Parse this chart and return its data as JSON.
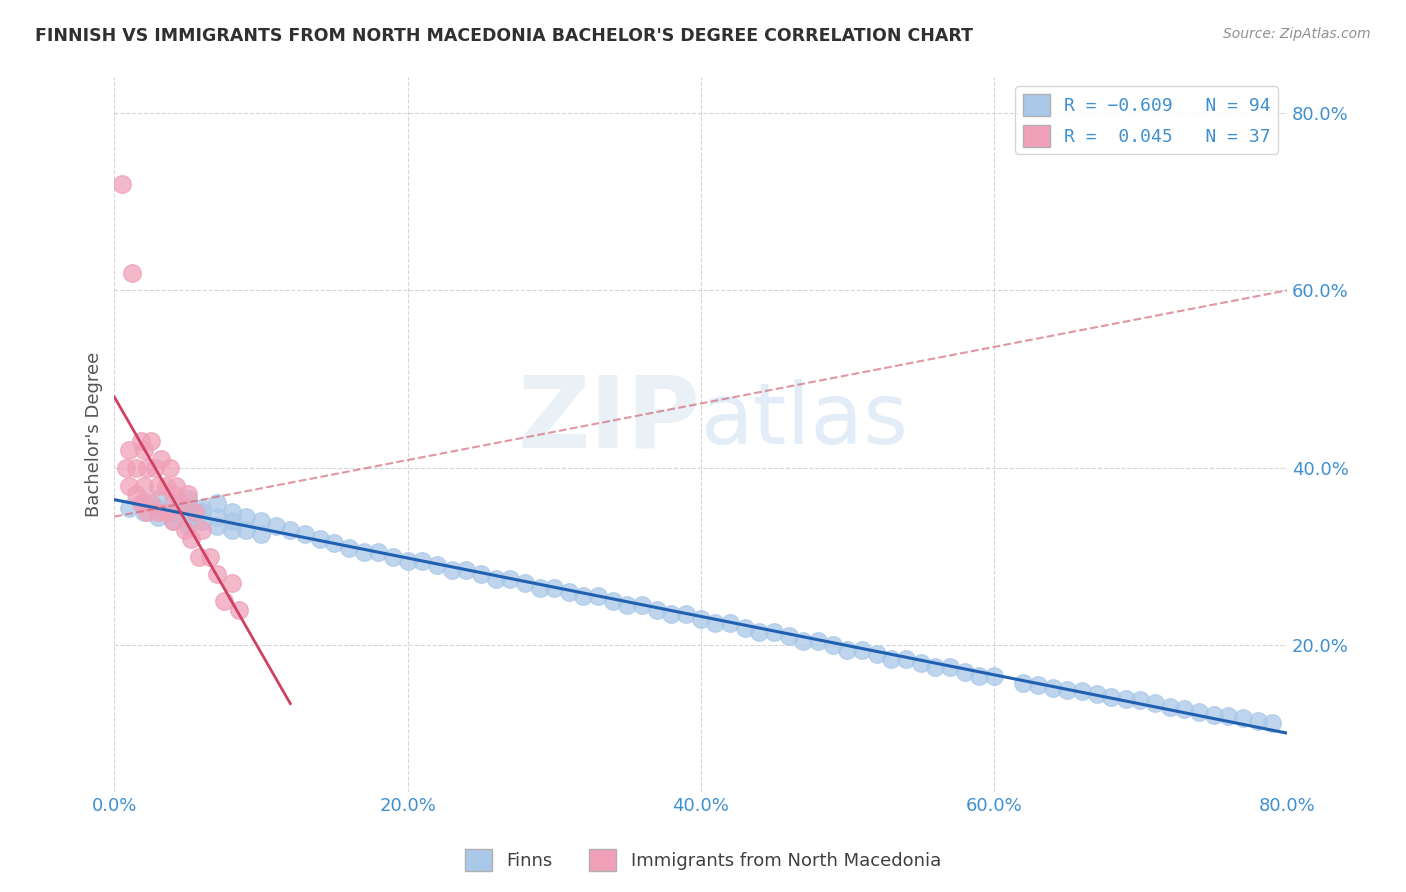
{
  "title": "FINNISH VS IMMIGRANTS FROM NORTH MACEDONIA BACHELOR'S DEGREE CORRELATION CHART",
  "source": "Source: ZipAtlas.com",
  "ylabel": "Bachelor's Degree",
  "xlim": [
    0.0,
    0.8
  ],
  "ylim": [
    0.035,
    0.84
  ],
  "yticks": [
    0.2,
    0.4,
    0.6,
    0.8
  ],
  "xticks": [
    0.0,
    0.2,
    0.4,
    0.6,
    0.8
  ],
  "series1_label": "Finns",
  "series2_label": "Immigrants from North Macedonia",
  "series1_color": "#aac8e8",
  "series2_color": "#f0a0b8",
  "series1_line_color": "#2060b0",
  "trendline2_color": "#d06070",
  "background_color": "#ffffff",
  "grid_color": "#cccccc",
  "title_color": "#404040",
  "tick_label_color": "#4090d0",
  "finns_x": [
    0.01,
    0.02,
    0.02,
    0.03,
    0.03,
    0.03,
    0.04,
    0.04,
    0.04,
    0.05,
    0.05,
    0.05,
    0.05,
    0.06,
    0.06,
    0.06,
    0.07,
    0.07,
    0.07,
    0.08,
    0.08,
    0.08,
    0.09,
    0.09,
    0.1,
    0.1,
    0.11,
    0.12,
    0.13,
    0.14,
    0.15,
    0.16,
    0.17,
    0.18,
    0.19,
    0.2,
    0.21,
    0.22,
    0.23,
    0.24,
    0.25,
    0.26,
    0.27,
    0.28,
    0.29,
    0.3,
    0.31,
    0.32,
    0.33,
    0.34,
    0.35,
    0.36,
    0.37,
    0.38,
    0.39,
    0.4,
    0.41,
    0.42,
    0.43,
    0.44,
    0.45,
    0.46,
    0.47,
    0.48,
    0.49,
    0.5,
    0.51,
    0.52,
    0.53,
    0.54,
    0.55,
    0.56,
    0.57,
    0.58,
    0.59,
    0.6,
    0.62,
    0.63,
    0.64,
    0.65,
    0.66,
    0.67,
    0.68,
    0.69,
    0.7,
    0.71,
    0.72,
    0.73,
    0.74,
    0.75,
    0.76,
    0.77,
    0.78,
    0.79
  ],
  "finns_y": [
    0.355,
    0.36,
    0.35,
    0.365,
    0.345,
    0.355,
    0.36,
    0.35,
    0.34,
    0.355,
    0.345,
    0.335,
    0.365,
    0.355,
    0.34,
    0.35,
    0.345,
    0.335,
    0.36,
    0.34,
    0.35,
    0.33,
    0.345,
    0.33,
    0.34,
    0.325,
    0.335,
    0.33,
    0.325,
    0.32,
    0.315,
    0.31,
    0.305,
    0.305,
    0.3,
    0.295,
    0.295,
    0.29,
    0.285,
    0.285,
    0.28,
    0.275,
    0.275,
    0.27,
    0.265,
    0.265,
    0.26,
    0.255,
    0.255,
    0.25,
    0.245,
    0.245,
    0.24,
    0.235,
    0.235,
    0.23,
    0.225,
    0.225,
    0.22,
    0.215,
    0.215,
    0.21,
    0.205,
    0.205,
    0.2,
    0.195,
    0.195,
    0.19,
    0.185,
    0.185,
    0.18,
    0.175,
    0.175,
    0.17,
    0.165,
    0.165,
    0.158,
    0.155,
    0.152,
    0.15,
    0.148,
    0.145,
    0.142,
    0.14,
    0.138,
    0.135,
    0.13,
    0.128,
    0.125,
    0.122,
    0.12,
    0.118,
    0.115,
    0.112
  ],
  "nmacedonia_x": [
    0.005,
    0.008,
    0.01,
    0.01,
    0.012,
    0.015,
    0.015,
    0.018,
    0.018,
    0.02,
    0.02,
    0.022,
    0.022,
    0.025,
    0.025,
    0.028,
    0.03,
    0.03,
    0.032,
    0.035,
    0.035,
    0.038,
    0.04,
    0.04,
    0.042,
    0.045,
    0.048,
    0.05,
    0.052,
    0.055,
    0.058,
    0.06,
    0.065,
    0.07,
    0.075,
    0.08,
    0.085
  ],
  "nmacedonia_y": [
    0.72,
    0.4,
    0.42,
    0.38,
    0.62,
    0.4,
    0.37,
    0.43,
    0.36,
    0.42,
    0.38,
    0.4,
    0.35,
    0.43,
    0.36,
    0.4,
    0.38,
    0.35,
    0.41,
    0.38,
    0.35,
    0.4,
    0.37,
    0.34,
    0.38,
    0.36,
    0.33,
    0.37,
    0.32,
    0.35,
    0.3,
    0.33,
    0.3,
    0.28,
    0.25,
    0.27,
    0.24
  ]
}
